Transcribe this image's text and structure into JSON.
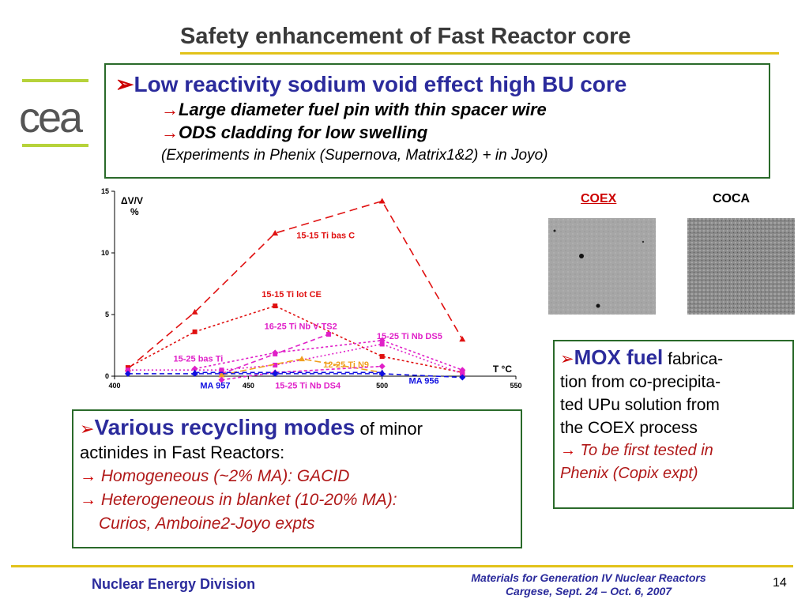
{
  "slide": {
    "title": "Safety enhancement of Fast Reactor core",
    "logo_text": "cea",
    "page_number": "14"
  },
  "top_box": {
    "arrow": "➢",
    "headline": "Low reactivity sodium void effect high BU core",
    "sub_arrow": "→",
    "bullets": [
      "Large diameter fuel pin with thin spacer wire",
      "ODS cladding for low swelling"
    ],
    "note": "(Experiments in Phenix (Supernova, Matrix1&2) +  in Joyo)"
  },
  "chart_data": {
    "type": "line",
    "ylabel": "ΔV/V",
    "ylabel_unit": "%",
    "xlabel": "T °C",
    "xlim": [
      400,
      550
    ],
    "ylim": [
      0,
      15
    ],
    "x_ticks": [
      400,
      450,
      500,
      550
    ],
    "y_ticks": [
      0,
      5,
      10,
      15
    ],
    "series": [
      {
        "name": "15-15 Ti bas C",
        "color": "#e01010",
        "dash": "10,6",
        "marker": "triangle",
        "points": [
          [
            405,
            0.6
          ],
          [
            430,
            5.2
          ],
          [
            460,
            11.6
          ],
          [
            500,
            14.2
          ],
          [
            530,
            3.0
          ]
        ],
        "label_at": [
          468,
          11.2
        ]
      },
      {
        "name": "15-15 Ti lot CE",
        "color": "#e01010",
        "dash": "3,3",
        "marker": "square",
        "points": [
          [
            405,
            0.7
          ],
          [
            430,
            3.6
          ],
          [
            460,
            5.7
          ],
          [
            500,
            1.6
          ],
          [
            530,
            0.3
          ]
        ],
        "label_at": [
          455,
          6.4
        ]
      },
      {
        "name": "16-25 Ti Nb V  TS2",
        "color": "#e020c8",
        "dash": "6,4",
        "marker": "square",
        "points": [
          [
            440,
            0.2
          ],
          [
            460,
            1.8
          ],
          [
            480,
            3.4
          ]
        ],
        "label_at": [
          456,
          3.8
        ]
      },
      {
        "name": "15-25 Ti Nb  DS5",
        "color": "#e020c8",
        "dash": "3,3",
        "marker": "diamond",
        "points": [
          [
            430,
            0.6
          ],
          [
            460,
            1.9
          ],
          [
            500,
            2.9
          ],
          [
            530,
            0.5
          ]
        ],
        "label_at": [
          498,
          3.0
        ]
      },
      {
        "name": "15-25 bas Ti",
        "color": "#e020c8",
        "dash": "2,3",
        "marker": "square",
        "points": [
          [
            405,
            0.5
          ],
          [
            440,
            0.5
          ],
          [
            460,
            0.9
          ],
          [
            500,
            2.6
          ],
          [
            530,
            0.2
          ]
        ],
        "label_at": [
          422,
          1.2
        ]
      },
      {
        "name": "12-25 Ti    N9",
        "color": "#f0a020",
        "dash": "8,4",
        "marker": "triangle",
        "points": [
          [
            440,
            0.1
          ],
          [
            470,
            1.4
          ],
          [
            500,
            0.3
          ]
        ],
        "label_at": [
          478,
          0.7
        ]
      },
      {
        "name": "15-25 Ti Nb  DS4",
        "color": "#e020c8",
        "dash": "4,3",
        "marker": "diamond",
        "points": [
          [
            440,
            -0.3
          ],
          [
            460,
            0.3
          ],
          [
            500,
            0.8
          ]
        ],
        "label_at": [
          460,
          -1.0
        ]
      },
      {
        "name": "MA 957",
        "color": "#1010e0",
        "dash": "6,4",
        "marker": "diamond",
        "points": [
          [
            405,
            0.2
          ],
          [
            430,
            0.2
          ],
          [
            460,
            0.2
          ],
          [
            500,
            0.2
          ],
          [
            530,
            -0.1
          ]
        ],
        "label_at": [
          432,
          -1.0
        ]
      },
      {
        "name": "MA 956",
        "color": "#1010e0",
        "dash": "6,4",
        "marker": "triangle",
        "points": [
          [
            430,
            0.3
          ],
          [
            460,
            0.3
          ],
          [
            500,
            0.3
          ]
        ],
        "label_at": [
          510,
          -0.6
        ]
      }
    ]
  },
  "images": {
    "coex_label": "COEX",
    "coca_label": "COCA"
  },
  "mox_box": {
    "arrow": "➢",
    "headline": "MOX fuel",
    "line1_rest": " fabrica-",
    "line2": "tion from co-precipita-",
    "line3": "ted UPu solution from",
    "line4": "the COEX process",
    "arrow2": "→",
    "italic1": " To be first tested in",
    "italic2": "Phenix (Copix expt)"
  },
  "recycle_box": {
    "arrow": "➢",
    "headline": "Various recycling modes",
    "rest1": " of minor",
    "line2": "actinides in Fast Reactors:",
    "arrow2": "→",
    "item1": " Homogeneous (~2% MA): GACID",
    "item2": " Heterogeneous in blanket (10-20% MA):",
    "item2_cont": "Curios, Amboine2-Joyo expts"
  },
  "footer": {
    "left": "Nuclear Energy Division",
    "center_line1": "Materials for Generation IV Nuclear Reactors",
    "center_line2": "Cargese, Sept. 24 – Oct. 6, 2007"
  },
  "colors": {
    "accent_gold": "#e2c21a",
    "box_border": "#2a6a2a",
    "heading_blue": "#2b2b9c",
    "accent_red": "#cc0000"
  }
}
